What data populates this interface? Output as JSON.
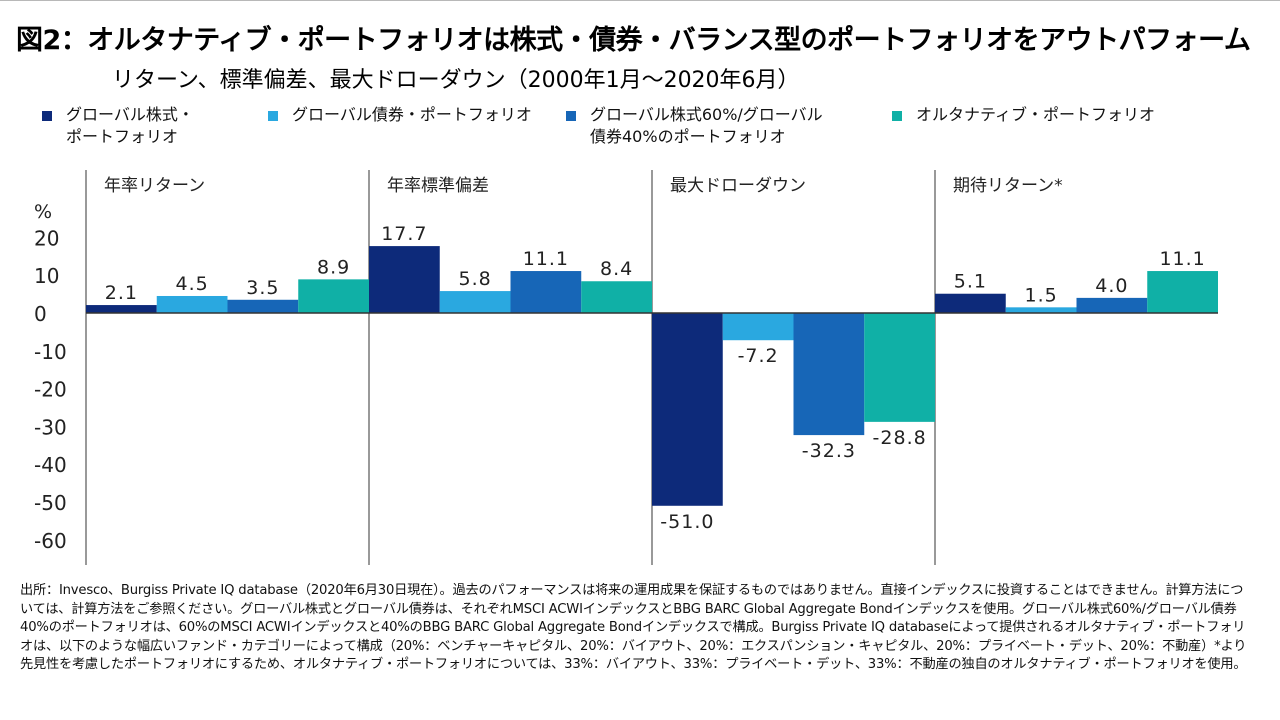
{
  "title": "図2：オルタナティブ・ポートフォリオは株式・債券・バランス型のポートフォリオをアウトパフォーム",
  "subtitle": "リターン、標準偏差、最大ドローダウン（2000年1月～2020年6月）",
  "colors": {
    "global_equity": "#0d2a7a",
    "global_bond": "#2aa8e0",
    "balanced": "#1766b7",
    "alternative": "#10b0a6",
    "axis": "#333333"
  },
  "legend": [
    {
      "line1": "グローバル株式・",
      "line2": "ポートフォリオ"
    },
    {
      "line1": "グローバル債券・ポートフォリオ",
      "line2": ""
    },
    {
      "line1": "グローバル株式60%/グローバル",
      "line2": "債券40%のポートフォリオ"
    },
    {
      "line1": "オルタナティブ・ポートフォリオ",
      "line2": ""
    }
  ],
  "chart_data": {
    "type": "bar",
    "ylabel": "%",
    "ylim": [
      -65,
      25
    ],
    "yticks": [
      20,
      10,
      0,
      -10,
      -20,
      -30,
      -40,
      -50,
      -60
    ],
    "categories": [
      "年率リターン",
      "年率標準偏差",
      "最大ドローダウン",
      "期待リターン*"
    ],
    "series": [
      {
        "name": "グローバル株式・ポートフォリオ",
        "values": [
          2.1,
          17.7,
          -51.0,
          5.1
        ]
      },
      {
        "name": "グローバル債券・ポートフォリオ",
        "values": [
          4.5,
          5.8,
          -7.2,
          1.5
        ]
      },
      {
        "name": "グローバル株式60%/グローバル債券40%のポートフォリオ",
        "values": [
          3.5,
          11.1,
          -32.3,
          4.0
        ]
      },
      {
        "name": "オルタナティブ・ポートフォリオ",
        "values": [
          8.9,
          8.4,
          -28.8,
          11.1
        ]
      }
    ]
  },
  "footnote": "出所：Invesco、Burgiss Private IQ database（2020年6月30日現在）。過去のパフォーマンスは将来の運用成果を保証するものではありません。直接インデックスに投資することはできません。計算方法については、計算方法をご参照ください。グローバル株式とグローバル債券は、それぞれMSCI ACWIインデックスとBBG BARC Global Aggregate Bondインデックスを使用。グローバル株式60%/グローバル債券40%のポートフォリオは、60%のMSCI ACWIインデックスと40%のBBG BARC Global Aggregate Bondインデックスで構成。Burgiss Private IQ databaseによって提供されるオルタナティブ・ポートフォリオは、以下のような幅広いファンド・カテゴリーによって構成（20%：ベンチャーキャピタル、20%：バイアウト、20%：エクスパンション・キャピタル、20%：プライベート・デット、20%：不動産）*より先見性を考慮したポートフォリオにするため、オルタナティブ・ポートフォリオについては、33%：バイアウト、33%：プライベート・デット、33%：不動産の独自のオルタナティブ・ポートフォリオを使用。"
}
